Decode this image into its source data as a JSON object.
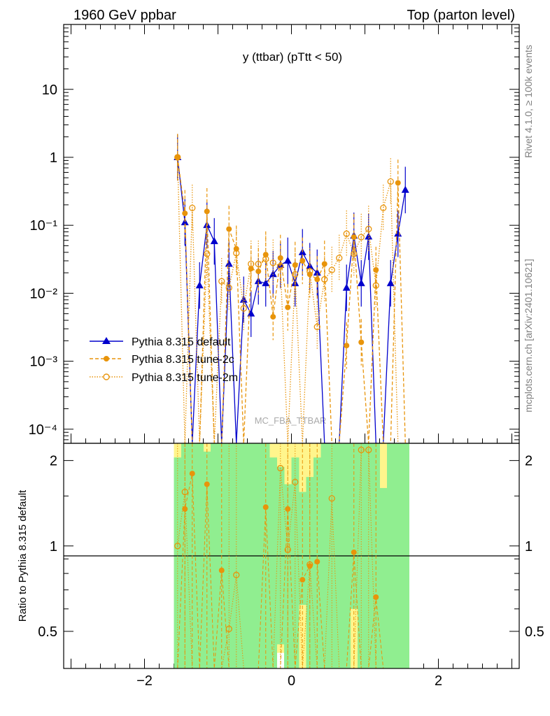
{
  "header": {
    "left": "1960 GeV ppbar",
    "right": "Top (parton level)"
  },
  "side_labels": {
    "rivet": "Rivet 4.1.0, ≥ 100k events",
    "mcplots": "mcplots.cern.ch [arXiv:2401.10621]"
  },
  "colors": {
    "default": "#0000cc",
    "tune": "#e8940a",
    "band_green": "#90ee90",
    "band_yellow": "#fff58c"
  },
  "chart_data": [
    {
      "type": "line",
      "title": "y (ttbar) (pTtt < 50)",
      "watermark": "MC_FBA_TTBAR",
      "yscale": "log",
      "xlim": [
        -3.1,
        3.1
      ],
      "ylim": [
        6.2e-05,
        90
      ],
      "y_tick_labels": [
        "10⁻⁴",
        "10⁻³",
        "10⁻²",
        "10⁻¹",
        "1",
        "10"
      ],
      "legend": [
        "Pythia 8.315 default",
        "Pythia 8.315 tune-2c",
        "Pythia 8.315 tune-2m"
      ],
      "legend_position": "left",
      "x": [
        -1.55,
        -1.45,
        -1.35,
        -1.25,
        -1.15,
        -1.05,
        -0.95,
        -0.85,
        -0.75,
        -0.65,
        -0.55,
        -0.45,
        -0.35,
        -0.25,
        -0.15,
        -0.05,
        0.05,
        0.15,
        0.25,
        0.35,
        0.45,
        0.55,
        0.65,
        0.75,
        0.85,
        0.95,
        1.05,
        1.15,
        1.25,
        1.35,
        1.45,
        1.55
      ],
      "series": [
        {
          "name": "Pythia 8.315 default",
          "values": [
            1.0,
            0.11,
            null,
            0.013,
            0.1,
            0.058,
            null,
            0.027,
            null,
            0.008,
            0.005,
            0.015,
            0.014,
            0.019,
            0.026,
            0.03,
            0.014,
            0.04,
            0.025,
            0.02,
            null,
            null,
            null,
            0.012,
            0.07,
            0.014,
            0.068,
            null,
            null,
            0.014,
            0.075,
            0.33
          ]
        },
        {
          "name": "Pythia 8.315 tune-2c",
          "values": [
            1.0,
            0.15,
            null,
            null,
            0.16,
            null,
            null,
            0.088,
            0.045,
            null,
            0.023,
            0.021,
            0.037,
            0.0045,
            0.033,
            0.0062,
            0.026,
            0.03,
            0.019,
            0.016,
            0.027,
            null,
            null,
            0.0017,
            0.067,
            0.0019,
            null,
            0.022,
            null,
            null,
            0.42,
            null
          ]
        },
        {
          "name": "Pythia 8.315 tune-2m",
          "values": [
            1.0,
            null,
            0.18,
            null,
            0.038,
            null,
            0.015,
            0.012,
            0.039,
            0.006,
            0.027,
            0.027,
            0.032,
            0.028,
            0.025,
            null,
            0.019,
            null,
            0.021,
            0.0032,
            0.016,
            0.022,
            0.033,
            0.075,
            0.038,
            0.067,
            0.088,
            0.013,
            0.18,
            0.44,
            0.0,
            0.0
          ]
        }
      ]
    },
    {
      "type": "line",
      "xlabel": "",
      "ylabel": "Ratio to Pythia 8.315 default",
      "xlim": [
        -3.1,
        3.1
      ],
      "ylim": [
        0.37,
        2.3
      ],
      "x_tick_labels": [
        "−2",
        "0",
        "2"
      ],
      "y_tick_labels": [
        "0.5",
        "1",
        "2"
      ],
      "x": [
        -1.55,
        -1.45,
        -1.35,
        -1.25,
        -1.15,
        -1.05,
        -0.95,
        -0.85,
        -0.75,
        -0.65,
        -0.55,
        -0.45,
        -0.35,
        -0.25,
        -0.15,
        -0.05,
        0.05,
        0.15,
        0.25,
        0.35,
        0.45,
        0.55,
        0.65,
        0.75,
        0.85,
        0.95,
        1.05,
        1.15,
        1.25,
        1.35,
        1.45,
        1.55
      ],
      "bands": [
        {
          "name": "yellow",
          "upper": [
            2.3,
            2.3,
            2.3,
            2.3,
            2.3,
            2.3,
            2.3,
            2.3,
            2.3,
            2.3,
            2.3,
            2.3,
            2.3,
            2.3,
            2.3,
            2.3,
            2.3,
            2.3,
            2.3,
            2.3,
            2.3,
            2.3,
            2.3,
            2.3,
            2.3,
            2.3,
            2.3,
            2.3,
            2.3,
            2.3,
            2.3,
            2.3
          ],
          "lower": [
            0.37,
            0.37,
            0.37,
            0.37,
            0.37,
            0.37,
            0.37,
            0.37,
            0.37,
            0.37,
            0.37,
            0.37,
            0.37,
            0.37,
            0.42,
            0.37,
            0.37,
            0.37,
            0.37,
            0.37,
            0.37,
            0.37,
            0.37,
            0.37,
            0.37,
            0.37,
            0.37,
            0.37,
            0.37,
            0.37,
            0.37,
            0.37
          ]
        },
        {
          "name": "green",
          "upper": [
            2.05,
            2.3,
            2.3,
            2.3,
            2.15,
            2.3,
            2.3,
            2.3,
            2.3,
            2.3,
            2.3,
            2.3,
            2.3,
            2.05,
            1.9,
            1.65,
            2.05,
            1.55,
            1.75,
            2.05,
            2.3,
            2.3,
            2.3,
            2.3,
            2.3,
            2.3,
            2.3,
            2.3,
            1.6,
            2.3,
            2.3,
            2.3
          ],
          "lower": [
            0.37,
            0.37,
            0.37,
            0.37,
            0.37,
            0.37,
            0.37,
            0.37,
            0.37,
            0.37,
            0.37,
            0.37,
            0.37,
            0.37,
            0.45,
            0.37,
            0.37,
            0.62,
            0.37,
            0.37,
            0.37,
            0.37,
            0.37,
            0.37,
            0.6,
            0.37,
            0.37,
            0.37,
            0.37,
            0.37,
            0.37,
            0.37
          ]
        }
      ],
      "series": [
        {
          "name": "Pythia 8.315 tune-2c",
          "values": [
            null,
            1.35,
            1.8,
            null,
            1.65,
            null,
            0.82,
            null,
            null,
            null,
            null,
            null,
            1.37,
            null,
            null,
            1.35,
            null,
            0.76,
            0.85,
            0.88,
            null,
            null,
            null,
            null,
            0.95,
            null,
            null,
            0.66,
            null,
            null,
            null,
            null
          ]
        },
        {
          "name": "Pythia 8.315 tune-2m",
          "values": [
            1.0,
            1.55,
            null,
            null,
            null,
            null,
            null,
            0.51,
            0.79,
            null,
            null,
            null,
            null,
            null,
            1.88,
            0.97,
            1.68,
            null,
            0.86,
            null,
            null,
            1.47,
            null,
            null,
            null,
            2.18,
            2.18,
            null,
            null,
            null,
            null,
            null
          ]
        }
      ]
    }
  ]
}
